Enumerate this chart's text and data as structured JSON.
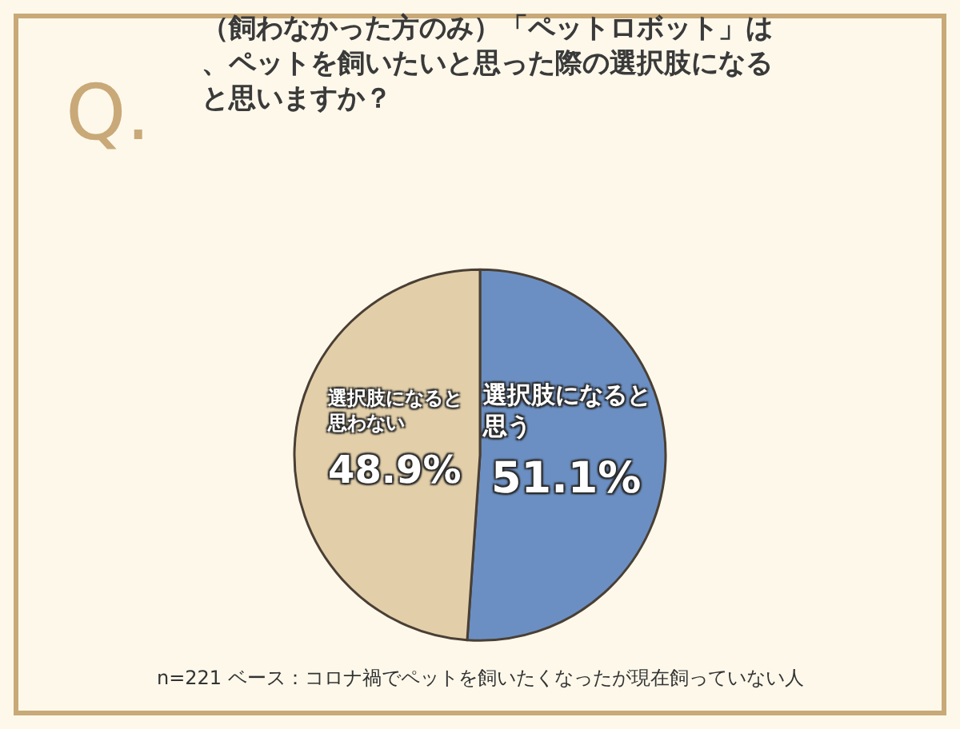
{
  "chart_data": {
    "type": "pie",
    "title": "（飼わなかった方のみ）「ペットロボット」は、ペットを飼いたいと思った際の選択肢になると思いますか？",
    "categories": [
      "選択肢になると思う",
      "選択肢になると思わない"
    ],
    "values": [
      51.1,
      48.9
    ],
    "value_labels": [
      "51.1%",
      "48.9%"
    ],
    "colors": [
      "#6b8fc2",
      "#e2cfa9"
    ],
    "legend": false,
    "annotations": [
      "Q.",
      "n=221 ベース：コロナ禍でペットを飼いたくなったが現在飼っていない人"
    ]
  }
}
